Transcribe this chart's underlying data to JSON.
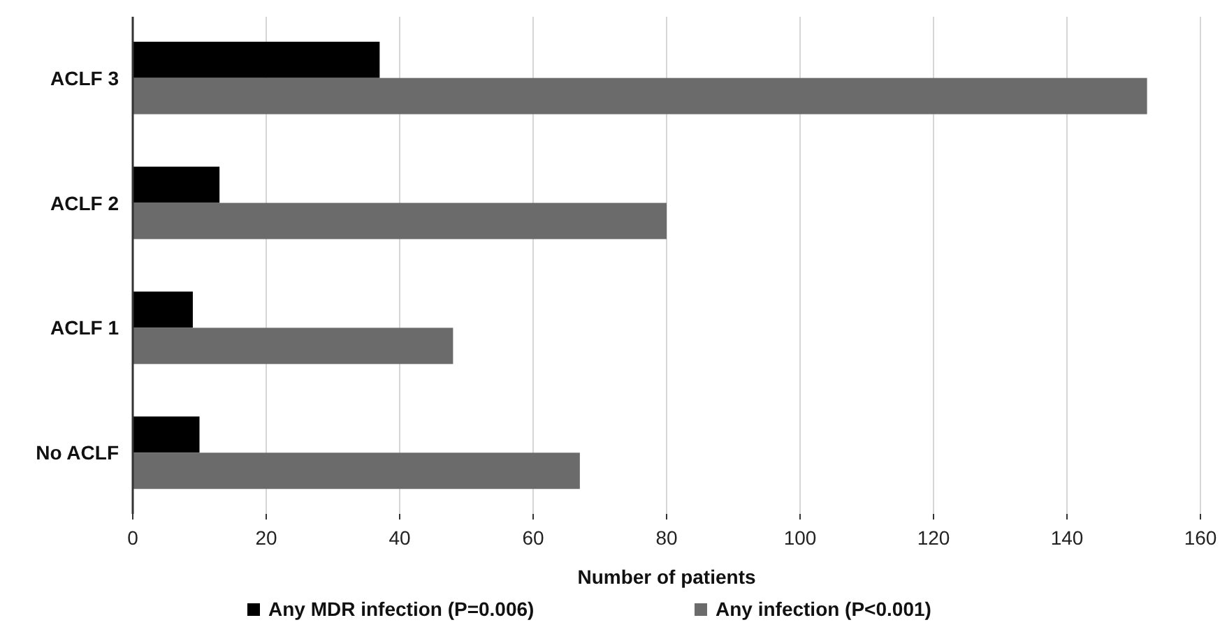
{
  "chart_data": {
    "type": "bar",
    "orientation": "horizontal",
    "xlabel": "Number of patients",
    "categories": [
      "ACLF 3",
      "ACLF 2",
      "ACLF 1",
      "No ACLF"
    ],
    "series": [
      {
        "name": "Any MDR infection (P=0.006)",
        "color": "#000000",
        "values": [
          37,
          13,
          9,
          10
        ]
      },
      {
        "name": "Any infection (P<0.001)",
        "color": "#6b6b6b",
        "values": [
          152,
          80,
          48,
          67
        ]
      }
    ],
    "xlim": [
      0,
      160
    ],
    "xticks": [
      0,
      20,
      40,
      60,
      80,
      100,
      120,
      140,
      160
    ],
    "grid": "x",
    "legend": "bottom"
  }
}
